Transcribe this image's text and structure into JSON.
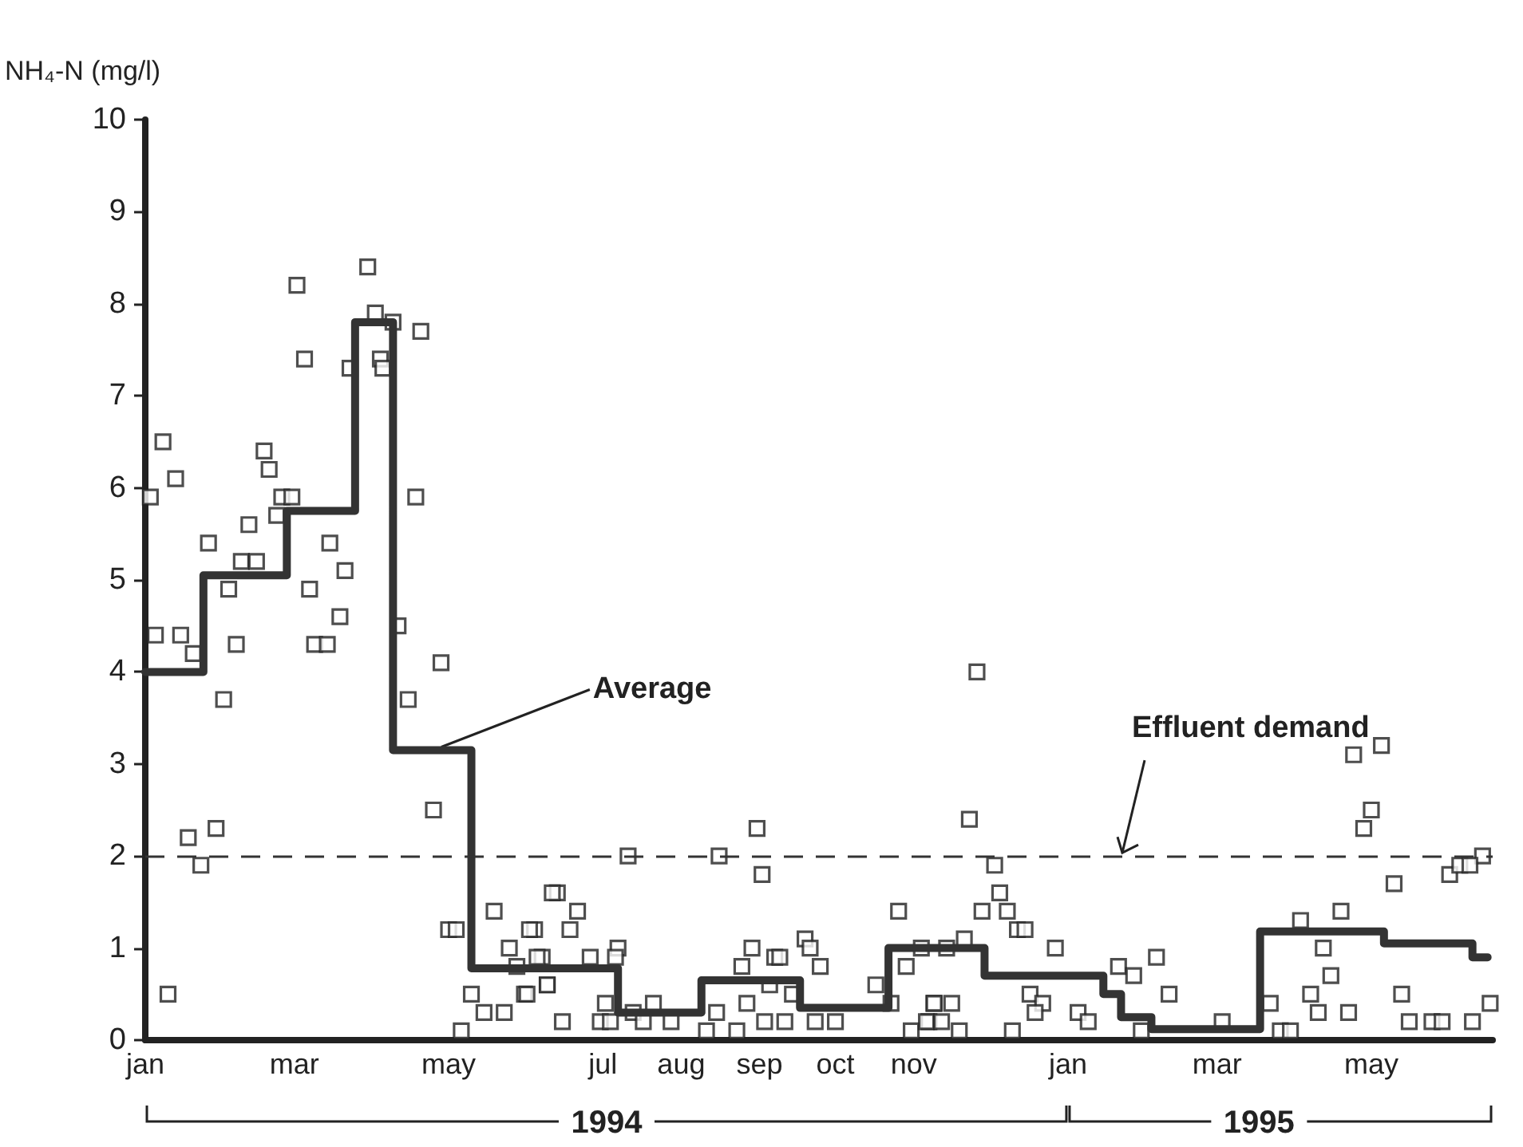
{
  "chart_data": {
    "type": "scatter",
    "ylabel": "NH₄-N (mg/l)",
    "xlim": [
      "1994-01-01",
      "1995-06-18"
    ],
    "ylim": [
      0,
      10
    ],
    "xticks": [
      {
        "value": "1994-01-01",
        "label": "jan"
      },
      {
        "value": "1994-03-01",
        "label": "mar"
      },
      {
        "value": "1994-05-01",
        "label": "may"
      },
      {
        "value": "1994-07-01",
        "label": "jul"
      },
      {
        "value": "1994-08-01",
        "label": "aug"
      },
      {
        "value": "1994-09-01",
        "label": "sep"
      },
      {
        "value": "1994-10-01",
        "label": "oct"
      },
      {
        "value": "1994-11-01",
        "label": "nov"
      },
      {
        "value": "1995-01-01",
        "label": "jan"
      },
      {
        "value": "1995-03-01",
        "label": "mar"
      },
      {
        "value": "1995-05-01",
        "label": "may"
      }
    ],
    "yticks": [
      0,
      1,
      2,
      3,
      4,
      5,
      6,
      7,
      8,
      9,
      10
    ],
    "grid": false,
    "series": [
      {
        "marker": "square",
        "color": "#222222",
        "x": [
          "1994-01-03",
          "1994-01-05",
          "1994-01-08",
          "1994-01-13",
          "1994-01-10",
          "1994-01-15",
          "1994-01-20",
          "1994-01-18",
          "1994-01-23",
          "1994-01-26",
          "1994-01-29",
          "1994-02-01",
          "1994-02-03",
          "1994-02-06",
          "1994-02-08",
          "1994-02-11",
          "1994-02-14",
          "1994-02-17",
          "1994-02-19",
          "1994-02-22",
          "1994-02-24",
          "1994-02-28",
          "1994-03-02",
          "1994-03-05",
          "1994-03-07",
          "1994-03-09",
          "1994-03-14",
          "1994-03-15",
          "1994-03-19",
          "1994-03-21",
          "1994-03-23",
          "1994-03-30",
          "1994-04-02",
          "1994-04-04",
          "1994-04-05",
          "1994-04-09",
          "1994-04-20",
          "1994-04-11",
          "1994-04-18",
          "1994-04-15",
          "1994-04-28",
          "1994-04-25",
          "1994-05-01",
          "1994-05-04",
          "1994-05-19",
          "1994-05-10",
          "1994-05-06",
          "1994-05-15",
          "1994-05-23",
          "1994-05-25",
          "1994-05-28",
          "1994-05-31",
          "1994-06-04",
          "1994-06-07",
          "1994-06-09",
          "1994-06-13",
          "1994-06-15",
          "1994-06-02",
          "1994-06-11",
          "1994-06-21",
          "1994-06-18",
          "1994-06-05",
          "1994-06-09",
          "1994-06-01",
          "1994-06-26",
          "1994-07-07",
          "1994-07-06",
          "1994-07-02",
          "1994-06-30",
          "1994-07-04",
          "1994-07-11",
          "1994-07-13",
          "1994-07-21",
          "1994-07-17",
          "1994-07-28",
          "1994-08-16",
          "1994-08-31",
          "1994-09-02",
          "1994-08-29",
          "1994-08-25",
          "1994-08-27",
          "1994-08-15",
          "1994-08-11",
          "1994-08-23",
          "1994-09-03",
          "1994-09-05",
          "1994-09-07",
          "1994-09-09",
          "1994-09-19",
          "1994-09-21",
          "1994-09-25",
          "1994-09-14",
          "1994-09-11",
          "1994-09-23",
          "1994-10-01",
          "1994-10-17",
          "1994-10-26",
          "1994-10-23",
          "1994-10-29",
          "1994-11-04",
          "1994-11-09",
          "1994-10-31",
          "1994-11-07",
          "1994-11-26",
          "1994-11-23",
          "1994-12-03",
          "1994-12-05",
          "1994-12-08",
          "1994-11-28",
          "1994-12-12",
          "1994-12-15",
          "1994-11-21",
          "1994-11-14",
          "1994-12-27",
          "1994-11-09",
          "1994-11-16",
          "1994-11-06",
          "1994-11-12",
          "1994-11-19",
          "1994-12-10",
          "1994-12-17",
          "1994-12-22",
          "1994-12-19",
          "1995-01-05",
          "1995-01-09",
          "1995-01-21",
          "1995-01-27",
          "1995-02-05",
          "1995-02-10",
          "1995-01-30",
          "1995-03-03",
          "1995-03-22",
          "1995-04-24",
          "1995-05-05",
          "1995-05-01",
          "1995-04-28",
          "1995-05-10",
          "1995-04-03",
          "1995-04-19",
          "1995-04-12",
          "1995-04-15",
          "1995-04-07",
          "1995-04-10",
          "1995-04-22",
          "1995-03-26",
          "1995-03-30",
          "1995-05-13",
          "1995-05-16",
          "1995-05-25",
          "1995-05-29",
          "1995-06-10",
          "1995-06-17",
          "1995-06-01",
          "1995-06-05",
          "1995-06-14",
          "1995-06-09"
        ],
        "values": [
          5.9,
          4.4,
          6.5,
          6.1,
          0.5,
          4.4,
          4.2,
          2.2,
          1.9,
          5.4,
          2.3,
          3.7,
          4.9,
          4.3,
          5.2,
          5.6,
          5.2,
          6.4,
          6.2,
          5.7,
          5.9,
          5.9,
          8.2,
          7.4,
          4.9,
          4.3,
          4.3,
          5.4,
          4.6,
          5.1,
          7.3,
          8.4,
          7.9,
          7.4,
          7.3,
          7.8,
          7.7,
          4.5,
          5.9,
          3.7,
          4.1,
          2.5,
          1.2,
          1.2,
          1.4,
          0.5,
          0.1,
          0.3,
          0.3,
          1.0,
          0.8,
          0.5,
          1.2,
          0.9,
          0.6,
          1.6,
          0.2,
          1.2,
          1.6,
          1.4,
          1.2,
          0.9,
          0.6,
          0.5,
          0.9,
          1.0,
          0.9,
          0.4,
          0.2,
          0.2,
          2.0,
          0.3,
          0.4,
          0.2,
          0.2,
          2.0,
          2.3,
          1.8,
          1.0,
          0.8,
          0.4,
          0.3,
          0.1,
          0.1,
          0.2,
          0.6,
          0.9,
          0.9,
          1.1,
          1.0,
          0.8,
          0.5,
          0.2,
          0.2,
          0.2,
          0.6,
          1.4,
          0.4,
          0.8,
          1.0,
          0.4,
          0.1,
          0.2,
          4.0,
          2.4,
          1.9,
          1.6,
          1.4,
          1.4,
          1.2,
          1.2,
          1.1,
          1.0,
          1.0,
          0.4,
          0.4,
          0.2,
          0.2,
          0.1,
          0.1,
          0.5,
          0.4,
          0.3,
          0.3,
          0.2,
          0.8,
          0.7,
          0.9,
          0.5,
          0.1,
          0.2,
          0.4,
          3.1,
          3.2,
          2.5,
          2.3,
          1.7,
          1.3,
          1.4,
          1.0,
          0.7,
          0.5,
          0.3,
          0.3,
          0.1,
          0.1,
          0.5,
          0.2,
          0.2,
          0.2,
          0.2,
          0.4,
          1.8,
          1.9,
          2.0,
          1.9
        ]
      },
      {
        "type": "step",
        "line_style": "solid",
        "marker": "none",
        "color": "#333333",
        "x": [
          "1994-01-01",
          "1994-01-24",
          "1994-02-26",
          "1994-03-25",
          "1994-04-09",
          "1994-05-10",
          "1994-07-07",
          "1994-08-09",
          "1994-09-17",
          "1994-10-22",
          "1994-11-29",
          "1995-01-15",
          "1995-01-22",
          "1995-02-03",
          "1995-03-18",
          "1995-05-06",
          "1995-06-10",
          "1995-06-16"
        ],
        "values": [
          4.0,
          5.05,
          5.75,
          7.8,
          3.15,
          0.78,
          0.3,
          0.65,
          0.35,
          1.0,
          0.7,
          0.5,
          0.25,
          0.12,
          1.18,
          1.05,
          0.9,
          0.9
        ]
      }
    ],
    "ref_lines": [
      {
        "axis": "y",
        "value": 2,
        "label": "Effluent demand",
        "line_style": "dashed",
        "color": "#333333"
      }
    ],
    "annotations": [
      {
        "text": "Average",
        "x": "1994-04-30",
        "y": 3.15
      },
      "1994",
      "1995"
    ]
  }
}
